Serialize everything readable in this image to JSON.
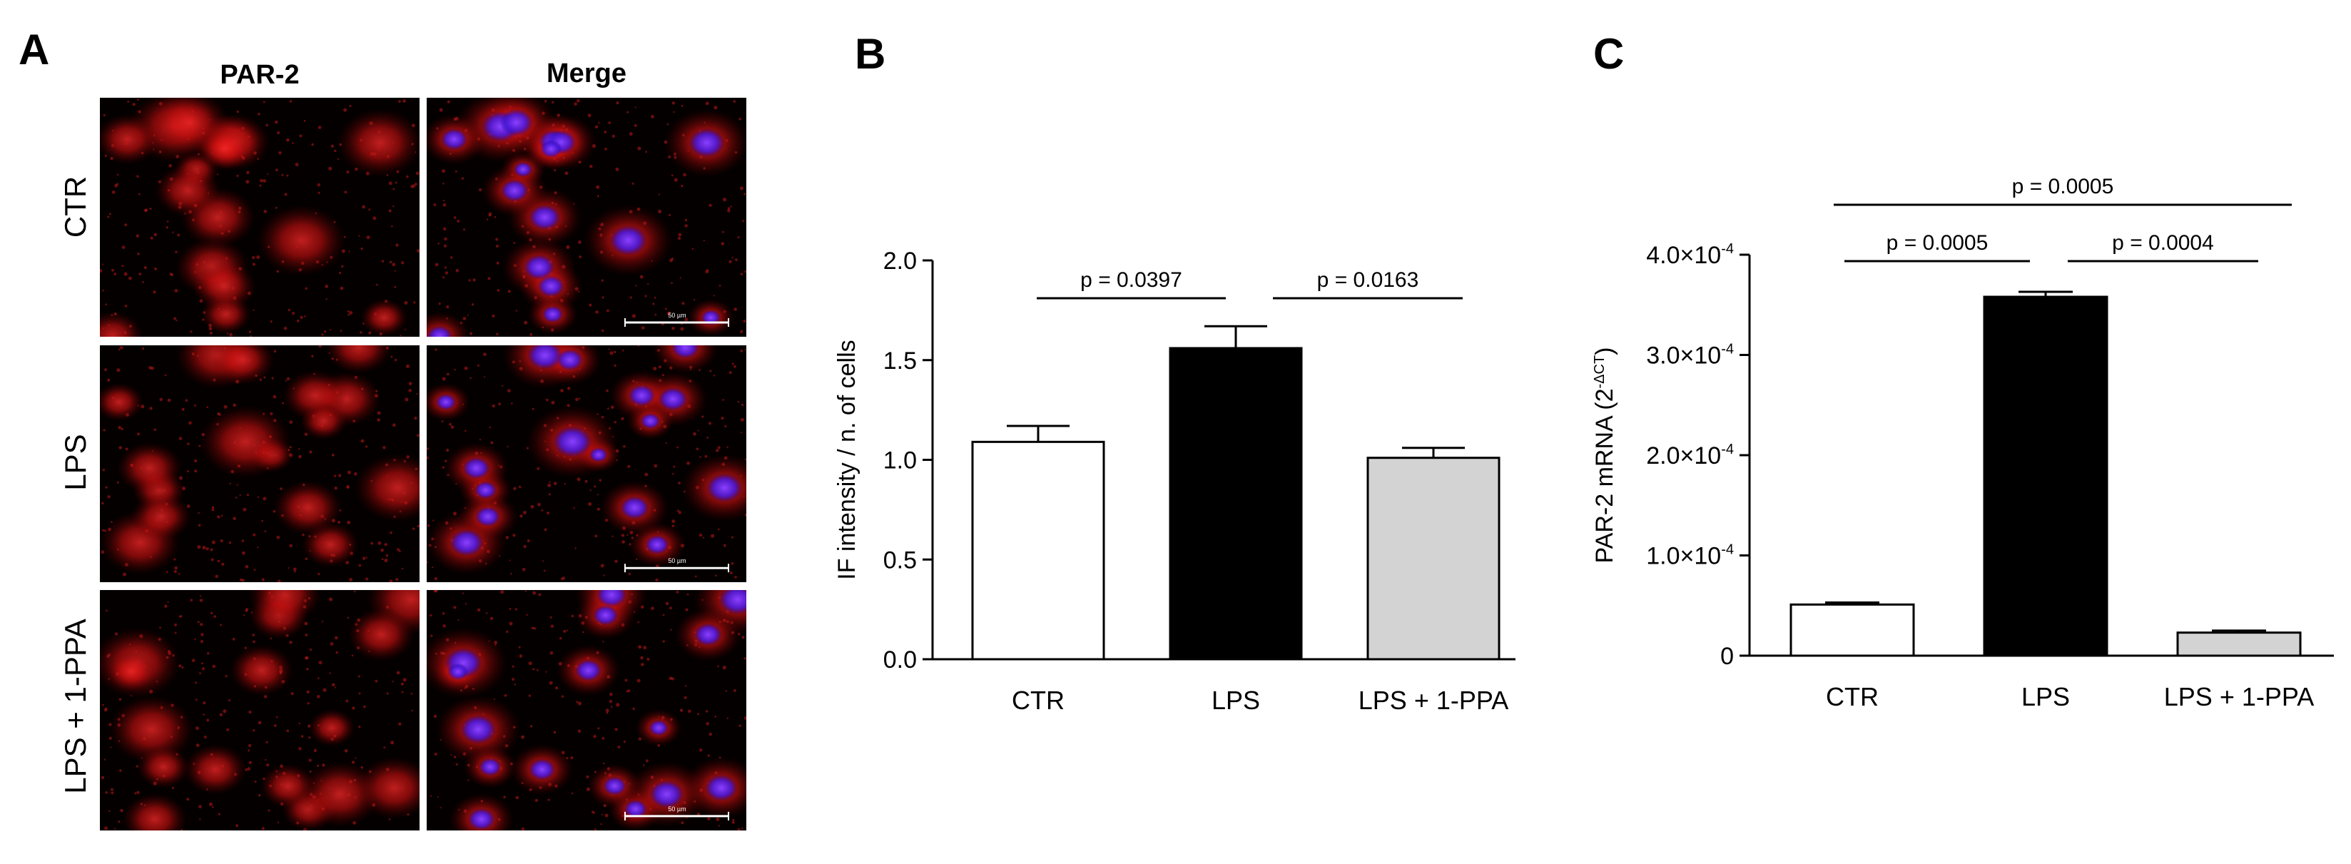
{
  "panel_a": {
    "letter": "A",
    "columns": [
      "PAR-2",
      "Merge"
    ],
    "rows": [
      "CTR",
      "LPS",
      "LPS + 1-PPA"
    ],
    "scale_bar_label": "50 µm"
  },
  "chart_data": [
    {
      "panel": "B",
      "type": "bar",
      "categories": [
        "CTR",
        "LPS",
        "LPS + 1-PPA"
      ],
      "values": [
        1.09,
        1.56,
        1.01
      ],
      "errors": [
        0.08,
        0.11,
        0.05
      ],
      "colors": [
        "#ffffff",
        "#000000",
        "#d3d3d3"
      ],
      "ylabel": "IF intensity / n. of cells",
      "ylim": [
        0,
        2.0
      ],
      "yticks": [
        "0.0",
        "0.5",
        "1.0",
        "1.5",
        "2.0"
      ],
      "grid": false,
      "significance": [
        {
          "from": 0,
          "to": 1,
          "label": "p = 0.0397"
        },
        {
          "from": 1,
          "to": 2,
          "label": "p = 0.0163"
        }
      ]
    },
    {
      "panel": "C",
      "type": "bar",
      "categories": [
        "CTR",
        "LPS",
        "LPS + 1-PPA"
      ],
      "values": [
        5.1e-05,
        0.000358,
        2.3e-05
      ],
      "errors": [
        2e-06,
        5e-06,
        2e-06
      ],
      "colors": [
        "#ffffff",
        "#000000",
        "#d3d3d3"
      ],
      "ylabel": "PAR-2 mRNA (2",
      "ylabel_sup": "-ΔCT",
      "ylabel_close": ")",
      "ylim": [
        0,
        0.0004
      ],
      "yticks": [
        {
          "base": "0",
          "exp": ""
        },
        {
          "base": "1.0×10",
          "exp": "-4"
        },
        {
          "base": "2.0×10",
          "exp": "-4"
        },
        {
          "base": "3.0×10",
          "exp": "-4"
        },
        {
          "base": "4.0×10",
          "exp": "-4"
        }
      ],
      "grid": false,
      "significance": [
        {
          "from": 0,
          "to": 1,
          "label": "p = 0.0005"
        },
        {
          "from": 1,
          "to": 2,
          "label": "p = 0.0004"
        },
        {
          "from": 0,
          "to": 2,
          "label": "p = 0.0005"
        }
      ]
    }
  ]
}
